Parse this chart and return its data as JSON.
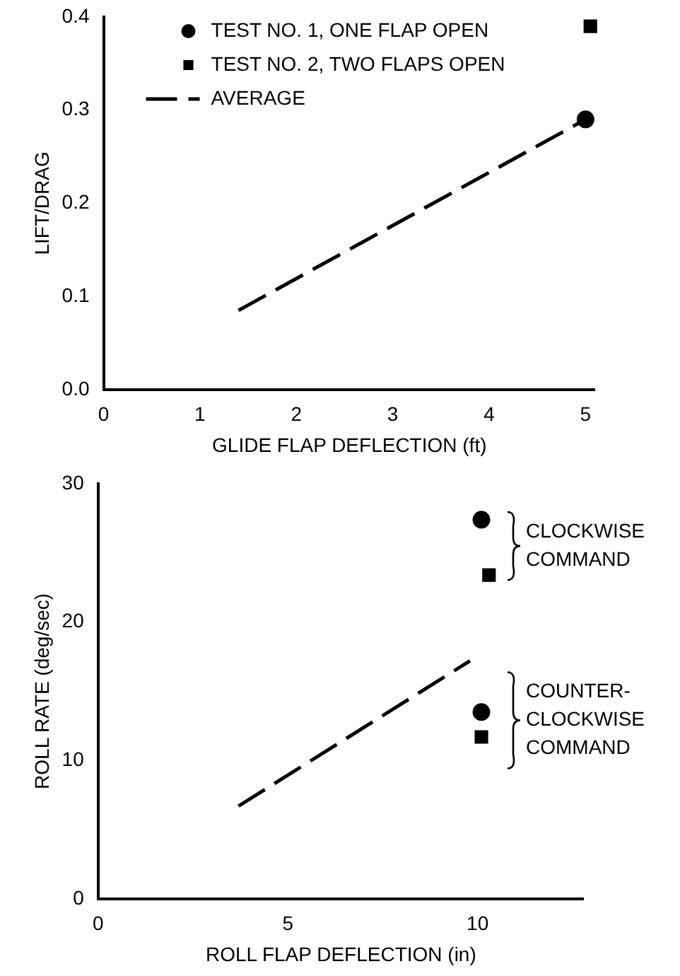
{
  "chart_data": [
    {
      "type": "scatter",
      "xlabel": "GLIDE FLAP DEFLECTION (ft)",
      "ylabel": "LIFT/DRAG",
      "xlim": [
        0,
        5.1
      ],
      "ylim": [
        0,
        0.4
      ],
      "xticks": [
        0,
        1,
        2,
        3,
        4,
        5
      ],
      "yticks": [
        {
          "value": 0,
          "label": "0.0"
        },
        0.1,
        0.2,
        0.3,
        0.4
      ],
      "legend": "top left",
      "series": [
        {
          "name": "TEST NO. 1, ONE FLAP OPEN",
          "type": "scatter",
          "color": "#000000",
          "marker": "circle",
          "x": [
            5.0
          ],
          "values": [
            0.29
          ]
        },
        {
          "name": "TEST NO. 2, TWO FLAPS OPEN",
          "type": "scatter",
          "color": "#000000",
          "marker": "square",
          "x": [
            5.05
          ],
          "values": [
            0.39
          ]
        },
        {
          "name": "AVERAGE",
          "type": "line",
          "color": "#000000",
          "marker": "none",
          "line_style": "dashed",
          "x": [
            1.4,
            5.0
          ],
          "values": [
            0.085,
            0.29
          ]
        }
      ]
    },
    {
      "type": "scatter",
      "xlabel": "ROLL FLAP DEFLECTION (in)",
      "ylabel": "ROLL RATE (deg/sec)",
      "xlim": [
        0,
        12.8
      ],
      "ylim": [
        0,
        30
      ],
      "xticks": [
        0,
        5,
        10
      ],
      "yticks": [
        0,
        10,
        20,
        30
      ],
      "series": [
        {
          "type": "scatter",
          "color": "#000000",
          "marker": "circle",
          "x": [
            10.1,
            10.1
          ],
          "values": [
            27.4,
            13.5
          ]
        },
        {
          "type": "scatter",
          "color": "#000000",
          "marker": "square",
          "x": [
            10.3,
            10.1
          ],
          "values": [
            23.4,
            11.7
          ]
        },
        {
          "type": "line",
          "color": "#000000",
          "marker": "none",
          "line_style": "dashed",
          "x": [
            3.7,
            9.8
          ],
          "values": [
            6.7,
            17.2
          ]
        }
      ],
      "annotations": [
        "CLOCKWISE\nCOMMAND",
        "COUNTER-\nCLOCKWISE\nCOMMAND"
      ]
    }
  ]
}
